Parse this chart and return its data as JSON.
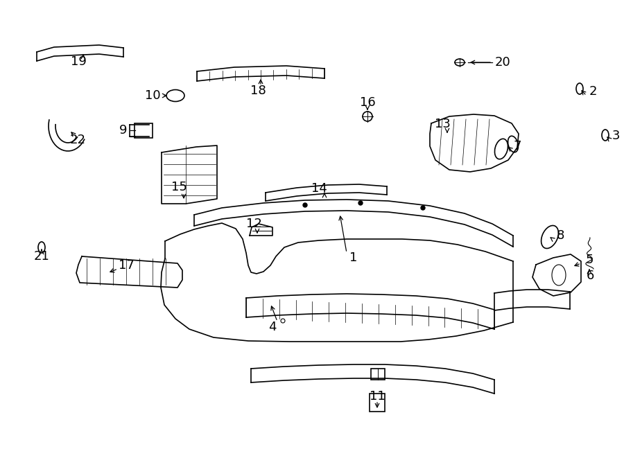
{
  "background_color": "#ffffff",
  "lc": "#000000",
  "lw": 1.2,
  "fig_width": 9.0,
  "fig_height": 6.61,
  "dpi": 100,
  "font_size": 13
}
